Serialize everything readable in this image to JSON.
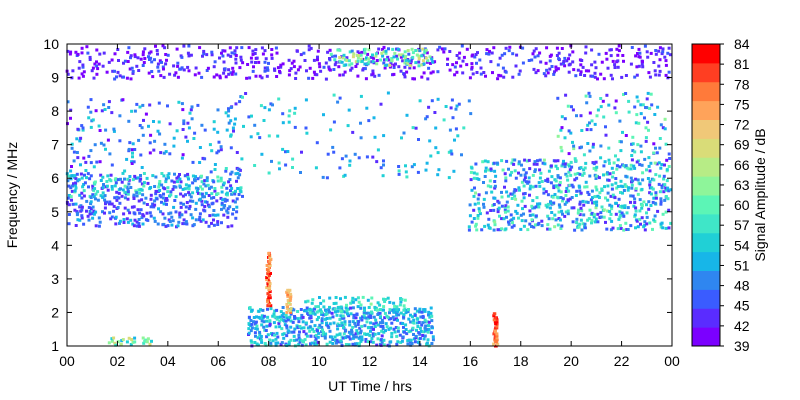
{
  "chart_data": {
    "type": "heatmap",
    "title": "2025-12-22",
    "xlabel": "UT Time / hrs",
    "ylabel": "Frequency / MHz",
    "xlim": [
      0,
      24
    ],
    "ylim": [
      1,
      10
    ],
    "x_ticks": [
      "00",
      "02",
      "04",
      "06",
      "08",
      "10",
      "12",
      "14",
      "16",
      "18",
      "20",
      "22",
      "00"
    ],
    "y_ticks": [
      "1",
      "2",
      "3",
      "4",
      "5",
      "6",
      "7",
      "8",
      "9",
      "10"
    ],
    "colorbar": {
      "label": "Signal Amplitude / dB",
      "range": [
        39,
        84
      ],
      "ticks": [
        "39",
        "42",
        "45",
        "48",
        "51",
        "54",
        "57",
        "60",
        "63",
        "66",
        "69",
        "72",
        "75",
        "78",
        "81",
        "84"
      ],
      "colors": [
        "#7b00ff",
        "#5a2cff",
        "#3a5cff",
        "#2f86f0",
        "#17b6e8",
        "#20d0d6",
        "#3fe6c8",
        "#5cf5b6",
        "#8ef59a",
        "#b7ec86",
        "#d9dc78",
        "#f0c878",
        "#ffa35a",
        "#ff7a3a",
        "#ff3e22",
        "#ff0000"
      ]
    },
    "regions": [
      {
        "name": "high_band",
        "t": [
          0,
          24
        ],
        "f": [
          9.0,
          9.9
        ],
        "density": 0.22,
        "amp": [
          39,
          46
        ]
      },
      {
        "name": "high_band_cyan",
        "t": [
          10.5,
          14.5
        ],
        "f": [
          9.4,
          9.8
        ],
        "density": 0.5,
        "amp": [
          50,
          70
        ]
      },
      {
        "name": "night_band_6",
        "t": [
          0,
          7
        ],
        "f": [
          5.5,
          6.1
        ],
        "density": 0.45,
        "amp": [
          42,
          60
        ]
      },
      {
        "name": "night_band_5",
        "t": [
          0,
          6.8
        ],
        "f": [
          4.6,
          5.4
        ],
        "density": 0.35,
        "amp": [
          42,
          52
        ]
      },
      {
        "name": "night_sparse",
        "t": [
          0,
          7
        ],
        "f": [
          6.2,
          8.3
        ],
        "density": 0.1,
        "amp": [
          40,
          55
        ]
      },
      {
        "name": "evening_band",
        "t": [
          16,
          24
        ],
        "f": [
          4.5,
          6.5
        ],
        "density": 0.35,
        "amp": [
          42,
          62
        ]
      },
      {
        "name": "evening_sparse",
        "t": [
          19.5,
          24
        ],
        "f": [
          6.5,
          8.5
        ],
        "density": 0.12,
        "amp": [
          40,
          62
        ]
      },
      {
        "name": "day_main",
        "t": [
          7.2,
          14.5
        ],
        "f": [
          1.0,
          2.2
        ],
        "density": 0.6,
        "amp": [
          44,
          58
        ]
      },
      {
        "name": "day_upper",
        "t": [
          9.5,
          13.5
        ],
        "f": [
          2.0,
          2.5
        ],
        "density": 0.35,
        "amp": [
          50,
          62
        ]
      },
      {
        "name": "morning_low",
        "t": [
          1.5,
          3.5
        ],
        "f": [
          1.0,
          1.3
        ],
        "density": 0.5,
        "amp": [
          50,
          70
        ]
      },
      {
        "name": "day_sparse_mid",
        "t": [
          6,
          16
        ],
        "f": [
          6.0,
          8.5
        ],
        "density": 0.05,
        "amp": [
          44,
          58
        ]
      }
    ],
    "spikes": [
      {
        "t": 8.0,
        "f": [
          2.2,
          3.8
        ],
        "amp": [
          72,
          84
        ]
      },
      {
        "t": 8.8,
        "f": [
          2.0,
          2.7
        ],
        "amp": [
          66,
          78
        ]
      },
      {
        "t": 17.0,
        "f": [
          1.0,
          2.0
        ],
        "amp": [
          72,
          84
        ]
      }
    ],
    "grid": false,
    "legend": "colorbar-right"
  }
}
